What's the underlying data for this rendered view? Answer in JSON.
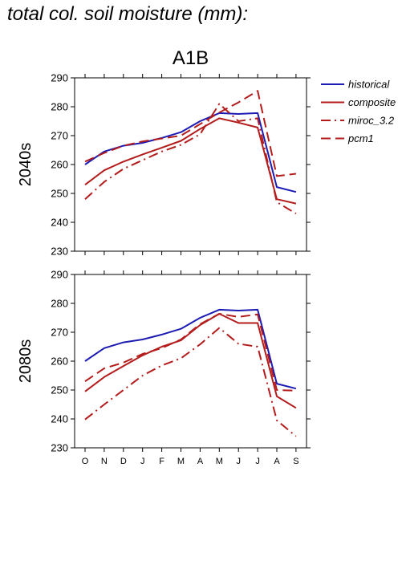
{
  "figure_title": "total col. soil moisture (mm):",
  "colors": {
    "historical": "#1c1cb4",
    "composite": "#b41c1c",
    "miroc_3.2": "#b41c1c",
    "pcm1": "#b41c1c"
  },
  "chart_data": [
    {
      "type": "line",
      "title": "A1B",
      "ylabel": "2040s",
      "xlabel": "",
      "categories": [
        "O",
        "N",
        "D",
        "J",
        "F",
        "M",
        "A",
        "M",
        "J",
        "J",
        "A",
        "S"
      ],
      "ylim": [
        230,
        290
      ],
      "yticks": [
        230,
        240,
        250,
        260,
        270,
        280,
        290
      ],
      "grid": false,
      "legend": "right",
      "series": [
        {
          "name": "historical",
          "style": "solid",
          "color": "#1c1cb4",
          "values": [
            260,
            264.5,
            266.5,
            267.5,
            269.2,
            271.2,
            275,
            277.8,
            277.5,
            277.8,
            252.2,
            250.5
          ]
        },
        {
          "name": "composite",
          "style": "solid",
          "color": "#b41c1c",
          "values": [
            253,
            258,
            261,
            263.5,
            265.8,
            268.2,
            272.3,
            276,
            274.5,
            272.8,
            248,
            246.5
          ]
        },
        {
          "name": "miroc_3.2",
          "style": "dashdot",
          "color": "#b41c1c",
          "values": [
            248,
            254,
            258.5,
            261.5,
            264.5,
            266.8,
            270.5,
            281,
            275,
            276,
            247,
            243
          ]
        },
        {
          "name": "pcm1",
          "style": "dashed",
          "color": "#b41c1c",
          "values": [
            261,
            264,
            266.5,
            268,
            269,
            270,
            274,
            278,
            281.5,
            285.5,
            256,
            256.8
          ]
        }
      ]
    },
    {
      "type": "line",
      "title": "",
      "ylabel": "2080s",
      "xlabel": "",
      "categories": [
        "O",
        "N",
        "D",
        "J",
        "F",
        "M",
        "A",
        "M",
        "J",
        "J",
        "A",
        "S"
      ],
      "ylim": [
        230,
        290
      ],
      "yticks": [
        230,
        240,
        250,
        260,
        270,
        280,
        290
      ],
      "grid": false,
      "series": [
        {
          "name": "historical",
          "style": "solid",
          "color": "#1c1cb4",
          "values": [
            260,
            264.5,
            266.5,
            267.5,
            269.2,
            271.2,
            275,
            277.8,
            277.5,
            277.8,
            252.2,
            250.5
          ]
        },
        {
          "name": "composite",
          "style": "solid",
          "color": "#b41c1c",
          "values": [
            249.5,
            254.5,
            258.3,
            262,
            265,
            267.2,
            272.5,
            276.4,
            273.2,
            273.2,
            247.8,
            243.8
          ]
        },
        {
          "name": "miroc_3.2",
          "style": "dashdot",
          "color": "#b41c1c",
          "values": [
            239.8,
            245,
            250,
            255,
            258.5,
            261,
            265.8,
            271.5,
            266,
            265,
            239.5,
            234
          ]
        },
        {
          "name": "pcm1",
          "style": "dashed",
          "color": "#b41c1c",
          "values": [
            253,
            257.5,
            259.5,
            262.5,
            264.5,
            267.5,
            272.8,
            276.4,
            275.3,
            276.2,
            250,
            249.8
          ]
        }
      ]
    }
  ]
}
